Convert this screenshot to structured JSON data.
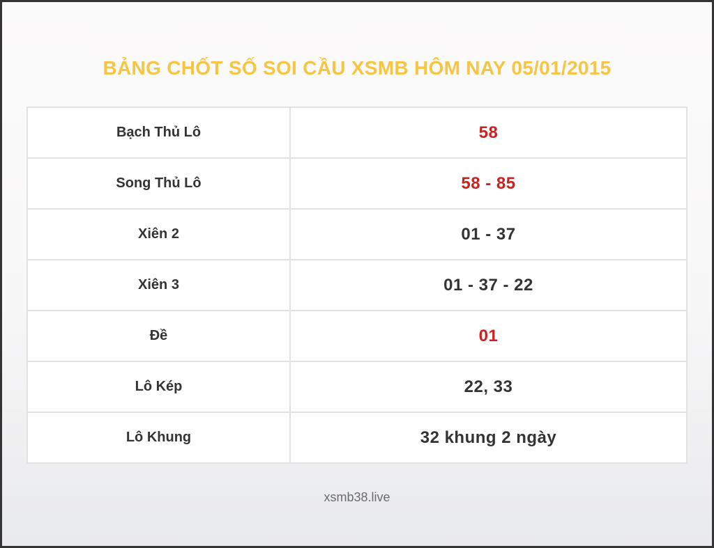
{
  "page": {
    "title": "BẢNG CHỐT SỐ SOI CẦU XSMB HÔM NAY 05/01/2015",
    "footer": "xsmb38.live"
  },
  "colors": {
    "title_gold": "#F6C544",
    "highlight_red": "#C9221F",
    "text_dark": "#333333",
    "cell_border": "#E2E2E4",
    "frame_border": "#343434",
    "footer_text": "#6B6B6B"
  },
  "table": {
    "rows": [
      {
        "label": "Bạch Thủ Lô",
        "value": "58",
        "highlight": true
      },
      {
        "label": "Song Thủ Lô",
        "value": "58 - 85",
        "highlight": true
      },
      {
        "label": "Xiên 2",
        "value": "01 - 37",
        "highlight": false
      },
      {
        "label": "Xiên 3",
        "value": "01 - 37 - 22",
        "highlight": false
      },
      {
        "label": "Đề",
        "value": "01",
        "highlight": true
      },
      {
        "label": "Lô Kép",
        "value": "22, 33",
        "highlight": false
      },
      {
        "label": "Lô Khung",
        "value": "32 khung 2 ngày",
        "highlight": false
      }
    ]
  }
}
